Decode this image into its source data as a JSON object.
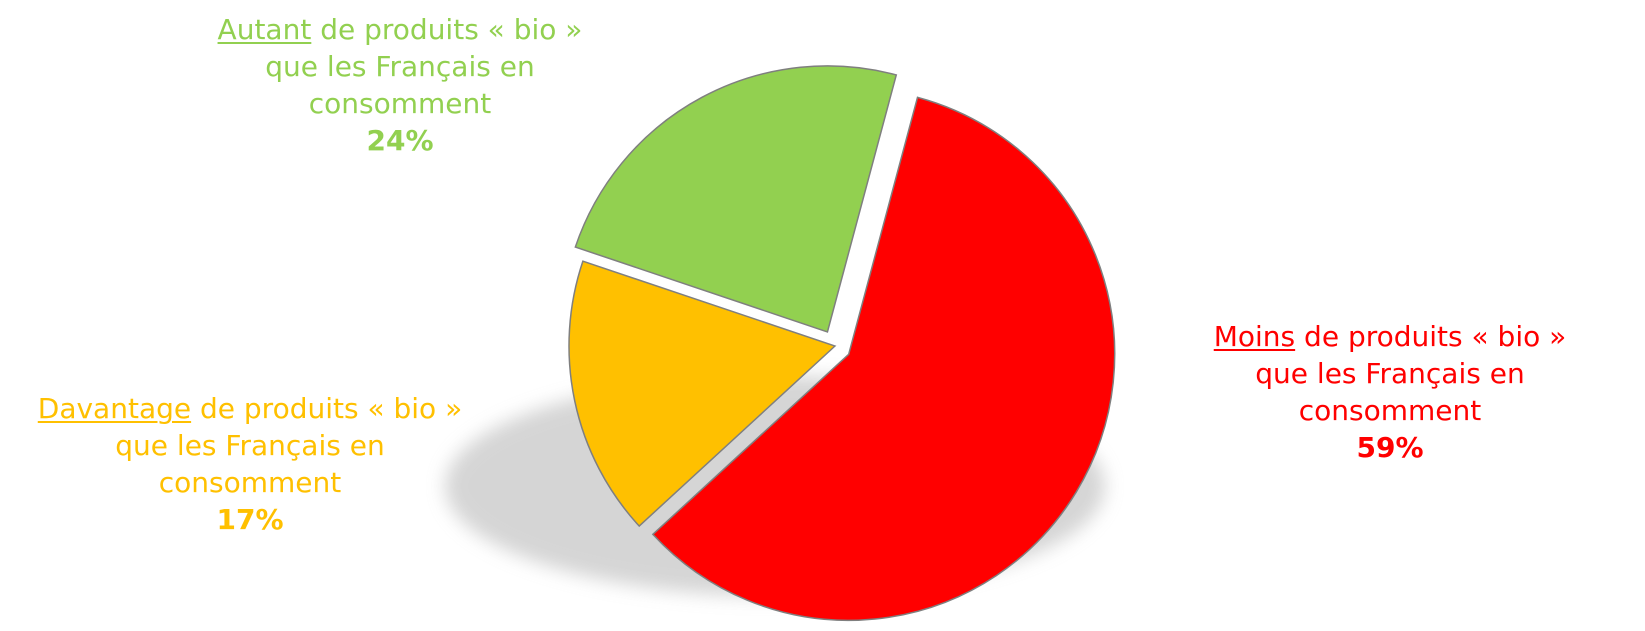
{
  "chart_data": {
    "type": "pie",
    "title": "",
    "slices": [
      {
        "key": "moins",
        "keyword": "Moins",
        "rest_line1": " de produits « bio »",
        "line2": "que les Français en",
        "line3": "consomment",
        "value": 59,
        "value_label": "59%",
        "color": "#ff0000",
        "exploded": true
      },
      {
        "key": "davantage",
        "keyword": "Davantage",
        "rest_line1": " de produits « bio »",
        "line2": "que les Français en",
        "line3": "consomment",
        "value": 17,
        "value_label": "17%",
        "color": "#ffc000",
        "exploded": false
      },
      {
        "key": "autant",
        "keyword": "Autant",
        "rest_line1": " de produits « bio »",
        "line2": "que les Français en",
        "line3": "consomment",
        "value": 24,
        "value_label": "24%",
        "color": "#92d050",
        "exploded": true
      }
    ]
  }
}
